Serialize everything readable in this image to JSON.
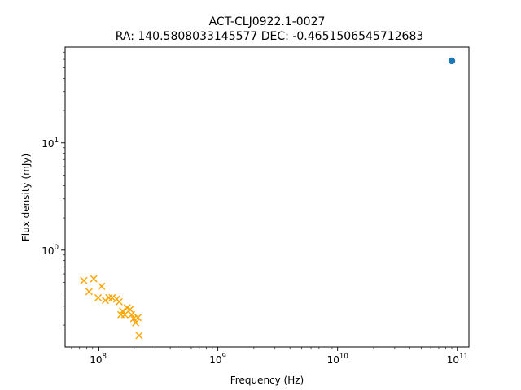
{
  "chart_data": {
    "type": "scatter",
    "title": "ACT-CLJ0922.1-0027",
    "subtitle": "RA: 140.5808033145577 DEC: -0.4651506545712683",
    "xlabel": "Frequency (Hz)",
    "ylabel": "Flux density (mJy)",
    "xscale": "log",
    "yscale": "log",
    "xlim": [
      53000000.0,
      125000000000.0
    ],
    "ylim": [
      0.125,
      78
    ],
    "grid": false,
    "x_ticks": [
      {
        "value": 100000000.0,
        "base": "10",
        "exp": "8"
      },
      {
        "value": 1000000000.0,
        "base": "10",
        "exp": "9"
      },
      {
        "value": 10000000000.0,
        "base": "10",
        "exp": "10"
      },
      {
        "value": 100000000000.0,
        "base": "10",
        "exp": "11"
      }
    ],
    "y_ticks": [
      {
        "value": 1,
        "base": "10",
        "exp": "0"
      },
      {
        "value": 10,
        "base": "10",
        "exp": "1"
      }
    ],
    "series": [
      {
        "marker": "o",
        "color": "#1f77b4",
        "points": [
          {
            "x": 90000000000.0,
            "y": 58
          }
        ]
      },
      {
        "marker": "x",
        "color": "#ffa500",
        "points": [
          {
            "x": 76000000.0,
            "y": 0.52
          },
          {
            "x": 84000000.0,
            "y": 0.41
          },
          {
            "x": 92000000.0,
            "y": 0.54
          },
          {
            "x": 100000000.0,
            "y": 0.36
          },
          {
            "x": 107000000.0,
            "y": 0.46
          },
          {
            "x": 115000000.0,
            "y": 0.34
          },
          {
            "x": 123000000.0,
            "y": 0.36
          },
          {
            "x": 131000000.0,
            "y": 0.36
          },
          {
            "x": 143000000.0,
            "y": 0.35
          },
          {
            "x": 150000000.0,
            "y": 0.33
          },
          {
            "x": 155000000.0,
            "y": 0.25
          },
          {
            "x": 160000000.0,
            "y": 0.27
          },
          {
            "x": 167000000.0,
            "y": 0.25
          },
          {
            "x": 175000000.0,
            "y": 0.29
          },
          {
            "x": 185000000.0,
            "y": 0.28
          },
          {
            "x": 190000000.0,
            "y": 0.25
          },
          {
            "x": 198000000.0,
            "y": 0.23
          },
          {
            "x": 206000000.0,
            "y": 0.21
          },
          {
            "x": 215000000.0,
            "y": 0.235
          },
          {
            "x": 220000000.0,
            "y": 0.16
          }
        ]
      }
    ]
  }
}
